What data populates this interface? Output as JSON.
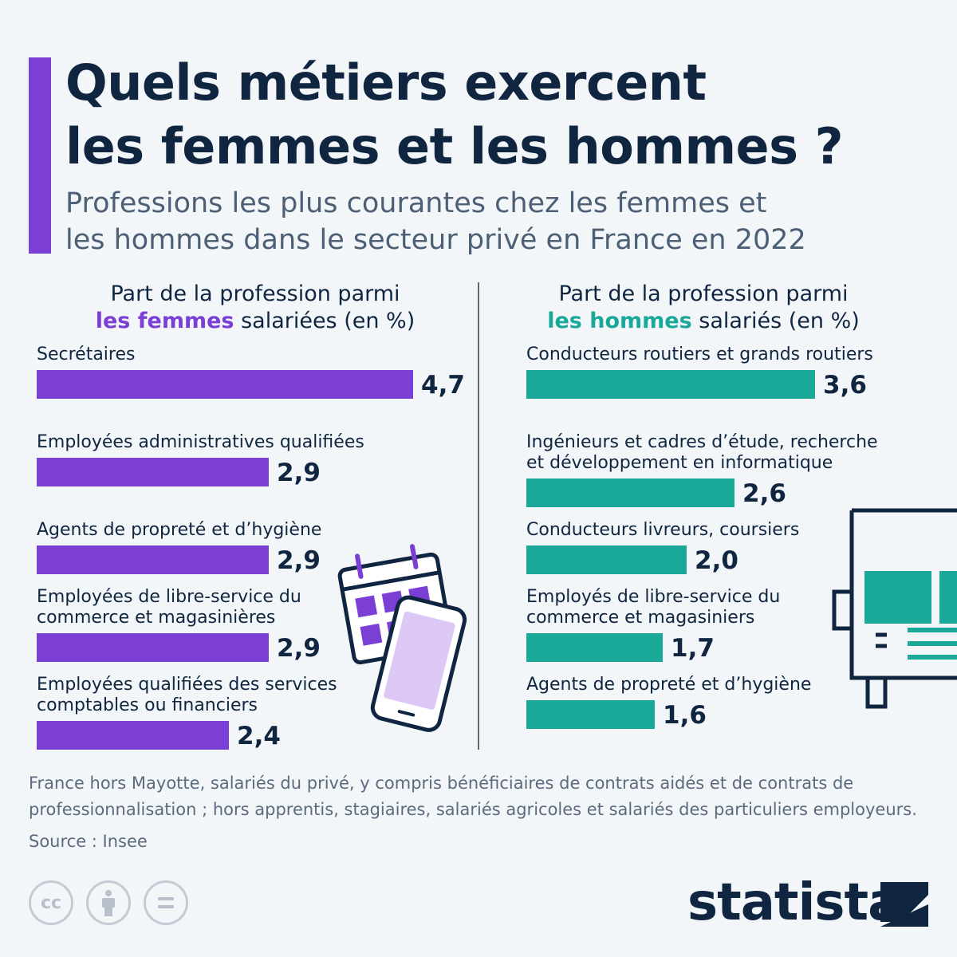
{
  "header": {
    "title_line1": "Quels métiers exercent",
    "title_line2": "les femmes et les hommes ?",
    "subtitle_line1": "Professions les plus courantes chez les femmes et",
    "subtitle_line2": "les hommes dans le secteur privé en France en 2022"
  },
  "colors": {
    "women": "#7b3fd6",
    "men": "#1aa898",
    "accent": "#7b3fd6",
    "text": "#0f2540"
  },
  "panels": {
    "women": {
      "head_line1": "Part de la profession parmi",
      "head_highlight": "les femmes",
      "head_rest": "salariées (en %)"
    },
    "men": {
      "head_line1": "Part de la profession parmi",
      "head_highlight": "les hommes",
      "head_rest": "salariés (en %)"
    }
  },
  "chart_data": [
    {
      "type": "bar",
      "orientation": "horizontal",
      "title": "Part de la profession parmi les femmes salariées (en %)",
      "categories": [
        "Secrétaires",
        "Employées administratives qualifiées",
        "Agents de propreté et d’hygiène",
        "Employées de libre-service du\ncommerce et magasinières",
        "Employées qualifiées des services\ncomptables ou financiers"
      ],
      "values": [
        4.7,
        2.9,
        2.9,
        2.9,
        2.4
      ],
      "value_labels": [
        "4,7",
        "2,9",
        "2,9",
        "2,9",
        "2,4"
      ],
      "xlim": [
        0,
        4.7
      ],
      "color": "#7b3fd6"
    },
    {
      "type": "bar",
      "orientation": "horizontal",
      "title": "Part de la profession parmi les hommes salariés (en %)",
      "categories": [
        "Conducteurs routiers et grands routiers",
        "Ingénieurs et cadres d’étude, recherche\net développement en informatique",
        "Conducteurs livreurs, coursiers",
        "Employés de libre-service du\ncommerce et magasiniers",
        "Agents de propreté et d’hygiène"
      ],
      "values": [
        3.6,
        2.6,
        2.0,
        1.7,
        1.6
      ],
      "value_labels": [
        "3,6",
        "2,6",
        "2,0",
        "1,7",
        "1,6"
      ],
      "xlim": [
        0,
        4.7
      ],
      "color": "#1aa898"
    }
  ],
  "footer": {
    "note_line1": "France hors Mayotte, salariés du privé, y compris bénéficiaires de contrats aidés et de contrats de",
    "note_line2": "professionnalisation ; hors apprentis, stagiaires, salariés agricoles et salariés des particuliers employeurs.",
    "source": "Source : Insee",
    "license_icons": [
      "cc-icon",
      "by-icon",
      "nd-icon"
    ],
    "brand": "statista"
  }
}
